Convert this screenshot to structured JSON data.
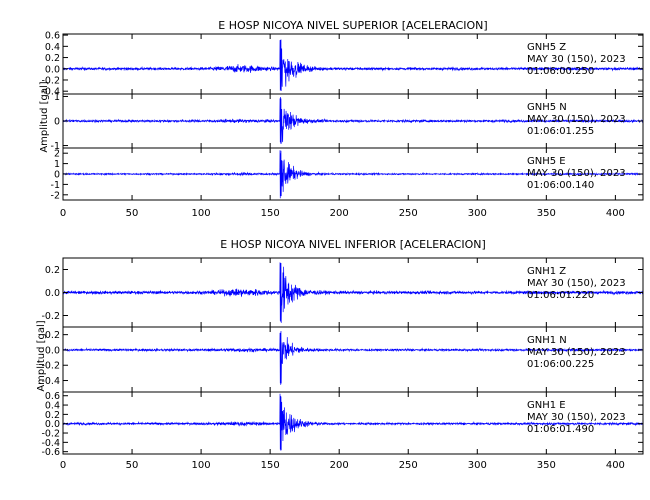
{
  "colors": {
    "trace": "#0000ff",
    "axes": "#000000",
    "background": "#ffffff"
  },
  "chart_data": [
    {
      "type": "line",
      "title": "E HOSP NICOYA NIVEL SUPERIOR [ACELERACION]",
      "ylabel": "Amplitud [gal]",
      "xlabel": "",
      "xlim": [
        0,
        420
      ],
      "x_ticks": [
        0,
        50,
        100,
        150,
        200,
        250,
        300,
        350,
        400
      ],
      "grid": false,
      "traces": [
        {
          "station": "GNH5",
          "component": "Z",
          "date": "MAY 30 (150), 2023",
          "start_time": "01:06:00.250",
          "ylim": [
            -0.45,
            0.62
          ],
          "y_ticks": [
            0.6,
            0.4,
            0.2,
            0.0,
            -0.2,
            -0.4
          ],
          "noise_amp": 0.02,
          "pre_event_amp": 0.045,
          "peak_pos": 0.55,
          "peak_neg": -0.42,
          "onset_s": 157
        },
        {
          "station": "GNH5",
          "component": "N",
          "date": "MAY 30 (150), 2023",
          "start_time": "01:06:01.255",
          "ylim": [
            -1.1,
            1.1
          ],
          "y_ticks": [
            1,
            0,
            -1
          ],
          "noise_amp": 0.04,
          "pre_event_amp": 0.03,
          "peak_pos": 1.0,
          "peak_neg": -1.0,
          "onset_s": 157
        },
        {
          "station": "GNH5",
          "component": "E",
          "date": "MAY 30 (150), 2023",
          "start_time": "01:06:00.140",
          "ylim": [
            -2.5,
            2.5
          ],
          "y_ticks": [
            2,
            1,
            0,
            -1,
            -2
          ],
          "noise_amp": 0.06,
          "pre_event_amp": 0.06,
          "peak_pos": 2.3,
          "peak_neg": -2.4,
          "onset_s": 157
        }
      ]
    },
    {
      "type": "line",
      "title": "E HOSP NICOYA NIVEL INFERIOR [ACELERACION]",
      "ylabel": "Amplitud [gal]",
      "xlabel": "",
      "xlim": [
        0,
        420
      ],
      "x_ticks": [
        0,
        50,
        100,
        150,
        200,
        250,
        300,
        350,
        400
      ],
      "grid": false,
      "traces": [
        {
          "station": "GNH1",
          "component": "Z",
          "date": "MAY 30 (150), 2023",
          "start_time": "01:06:01.220",
          "ylim": [
            -0.3,
            0.3
          ],
          "y_ticks": [
            0.2,
            0.0,
            -0.2
          ],
          "noise_amp": 0.012,
          "pre_event_amp": 0.02,
          "peak_pos": 0.28,
          "peak_neg": -0.28,
          "onset_s": 157
        },
        {
          "station": "GNH1",
          "component": "N",
          "date": "MAY 30 (150), 2023",
          "start_time": "01:06:00.225",
          "ylim": [
            -0.55,
            0.3
          ],
          "y_ticks": [
            0.2,
            0.0,
            -0.2,
            -0.4
          ],
          "noise_amp": 0.012,
          "pre_event_amp": 0.012,
          "peak_pos": 0.25,
          "peak_neg": -0.5,
          "onset_s": 157
        },
        {
          "station": "GNH1",
          "component": "E",
          "date": "MAY 30 (150), 2023",
          "start_time": "01:06:01.490",
          "ylim": [
            -0.65,
            0.68
          ],
          "y_ticks": [
            0.6,
            0.4,
            0.2,
            0.0,
            -0.2,
            -0.4,
            -0.6
          ],
          "noise_amp": 0.02,
          "pre_event_amp": 0.02,
          "peak_pos": 0.65,
          "peak_neg": -0.6,
          "onset_s": 157
        }
      ]
    }
  ]
}
